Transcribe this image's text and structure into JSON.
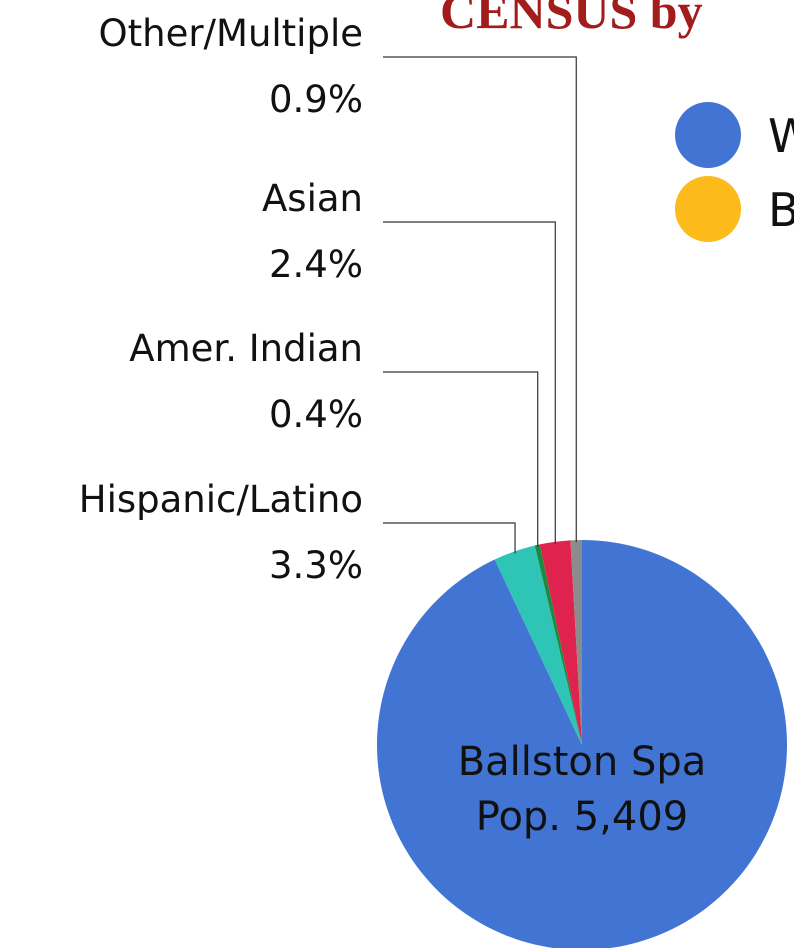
{
  "chart_data": {
    "type": "pie",
    "title": "CENSUS by",
    "categories": [
      "White",
      "Hispanic/Latino",
      "Amer. Indian",
      "Asian",
      "Other/Multiple"
    ],
    "values": [
      93.0,
      3.3,
      0.4,
      2.4,
      0.9
    ],
    "value_labels": [
      null,
      "3.3%",
      "0.4%",
      "2.4%",
      "0.9%"
    ],
    "colors": [
      "#4275d3",
      "#2ec4b6",
      "#1e8a3c",
      "#e0234e",
      "#8c8c8c"
    ],
    "legend": [
      {
        "name": "White",
        "color": "#4275d3"
      },
      {
        "name": "Black",
        "color": "#fdbb1b"
      }
    ],
    "annotations": [
      "Ballston Spa",
      "Pop. 5,409"
    ]
  }
}
